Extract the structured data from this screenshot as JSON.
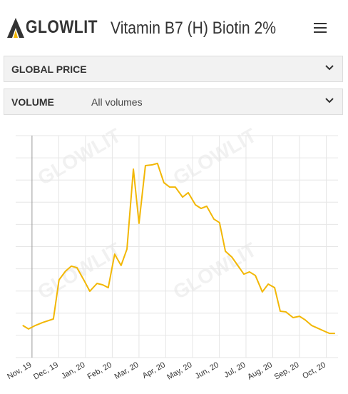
{
  "header": {
    "logo": "GLOWLIT",
    "title": "Vitamin B7 (H) Biotin 2%"
  },
  "filters": [
    {
      "label": "GLOBAL PRICE"
    },
    {
      "label": "VOLUME",
      "value": "All volumes"
    }
  ],
  "watermark": "GLOWLIT",
  "chart_data": {
    "type": "line",
    "x": [
      -0.35,
      -0.13,
      0.13,
      0.4,
      0.8,
      1.01,
      1.25,
      1.47,
      1.68,
      1.95,
      2.16,
      2.43,
      2.64,
      2.85,
      3.09,
      3.33,
      3.55,
      3.79,
      4.0,
      4.24,
      4.48,
      4.69,
      4.93,
      5.15,
      5.36,
      5.63,
      5.84,
      6.11,
      6.32,
      6.53,
      6.8,
      7.01,
      7.23,
      7.47,
      7.71,
      7.92,
      8.13,
      8.35,
      8.61,
      8.83,
      9.07,
      9.28,
      9.49,
      9.76,
      10.0,
      10.21,
      10.45,
      10.69,
      10.93,
      11.12,
      11.33
    ],
    "series": [
      {
        "color": "#f2b705",
        "values": [
          1.45,
          1.29,
          1.45,
          1.58,
          1.74,
          3.5,
          3.89,
          4.12,
          4.05,
          3.47,
          2.99,
          3.34,
          3.28,
          3.15,
          4.66,
          4.15,
          4.89,
          8.49,
          6.05,
          8.65,
          8.68,
          8.75,
          7.88,
          7.68,
          7.68,
          7.23,
          7.43,
          6.88,
          6.72,
          6.82,
          6.24,
          6.08,
          4.79,
          4.53,
          4.12,
          3.76,
          3.86,
          3.7,
          2.96,
          3.31,
          3.15,
          2.09,
          2.06,
          1.8,
          1.86,
          1.7,
          1.45,
          1.32,
          1.19,
          1.09,
          1.09
        ]
      }
    ],
    "xlim": [
      -0.61,
      11.44
    ],
    "xticks": [
      {
        "value": 0,
        "label": "Nov, 19"
      },
      {
        "value": 1,
        "label": "Dec, 19"
      },
      {
        "value": 2,
        "label": "Jan, 20"
      },
      {
        "value": 3,
        "label": "Feb, 20"
      },
      {
        "value": 4,
        "label": "Mar, 20"
      },
      {
        "value": 5,
        "label": "Apr, 20"
      },
      {
        "value": 6,
        "label": "May, 20"
      },
      {
        "value": 7,
        "label": "Jun, 20"
      },
      {
        "value": 8,
        "label": "Jul, 20"
      },
      {
        "value": 9,
        "label": "Aug, 20"
      },
      {
        "value": 10,
        "label": "Sep, 20"
      },
      {
        "value": 11,
        "label": "Oct, 20"
      }
    ],
    "ylim": [
      0,
      10
    ],
    "yticks": [
      0,
      1,
      2,
      3,
      4,
      5,
      6,
      7,
      8,
      9,
      10
    ],
    "grid": true
  }
}
